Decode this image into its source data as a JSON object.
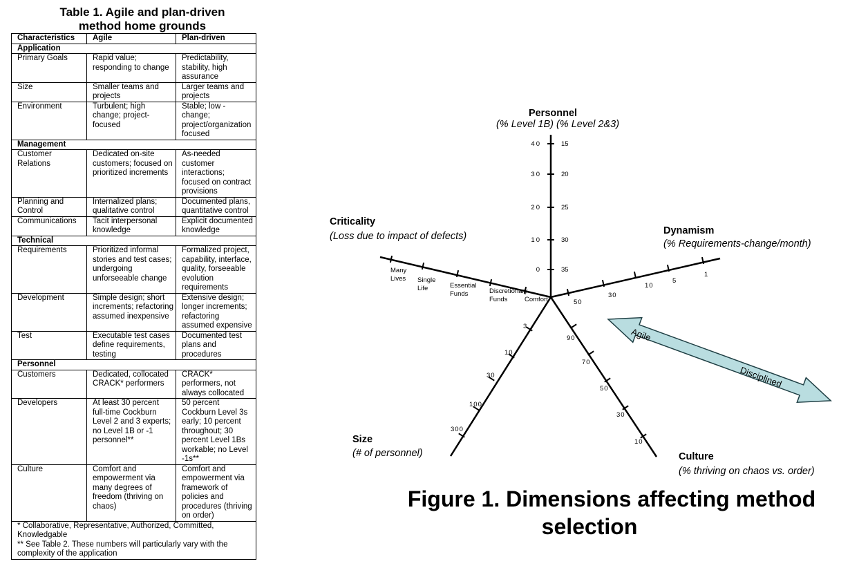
{
  "table": {
    "title": [
      "Table 1. Agile and plan-driven",
      "method home grounds"
    ],
    "header": [
      "Characteristics",
      "Agile",
      "Plan-driven"
    ],
    "sections": [
      {
        "title": "Application",
        "rows": [
          [
            "Primary Goals",
            "Rapid value; responding to change",
            "Predictability, stability, high assurance"
          ],
          [
            "Size",
            "Smaller teams and projects",
            "Larger teams and projects"
          ],
          [
            "Environment",
            "Turbulent; high change; project-focused",
            "Stable; low -change; project/organization focused"
          ]
        ]
      },
      {
        "title": "Management",
        "rows": [
          [
            "Customer Relations",
            "Dedicated on-site customers; focused on prioritized increments",
            "As-needed customer interactions; focused on contract provisions"
          ],
          [
            "Planning and Control",
            "Internalized plans; qualitative control",
            "Documented plans, quantitative control"
          ],
          [
            "Communications",
            "Tacit interpersonal knowledge",
            "Explicit documented knowledge"
          ]
        ]
      },
      {
        "title": "Technical",
        "rows": [
          [
            "Requirements",
            "Prioritized informal stories and test cases; undergoing unforseeable change",
            "Formalized project, capability, interface, quality, forseeable evolution requirements"
          ],
          [
            "Development",
            "Simple design; short increments; refactoring assumed inexpensive",
            "Extensive design; longer increments; refactoring assumed expensive"
          ],
          [
            "Test",
            "Executable test cases define requirements, testing",
            "Documented test plans and procedures"
          ]
        ]
      },
      {
        "title": "Personnel",
        "rows": [
          [
            "Customers",
            "Dedicated, collocated CRACK* performers",
            "CRACK* performers, not always collocated"
          ],
          [
            "Developers",
            "At least 30 percent full-time Cockburn Level 2 and 3 experts; no Level 1B or -1 personnel**",
            "50 percent Cockburn Level 3s early; 10 percent throughout; 30 percent Level 1Bs workable; no Level -1s**"
          ],
          [
            "Culture",
            "Comfort and empowerment via many degrees of freedom (thriving on chaos)",
            "Comfort and empowerment via framework of policies and procedures (thriving on order)"
          ]
        ]
      }
    ],
    "footnotes": [
      "* Collaborative, Representative, Authorized, Committed, Knowledgable",
      "** See Table 2. These numbers will particularly vary with the complexity of the application"
    ]
  },
  "figure": {
    "personnel": {
      "title": "Personnel",
      "subtitle": "(% Level 1B)  (% Level 2&3)",
      "ticks": [
        {
          "left": "40",
          "right": "15"
        },
        {
          "left": "30",
          "right": "20"
        },
        {
          "left": "20",
          "right": "25"
        },
        {
          "left": "10",
          "right": "30"
        },
        {
          "left": "0",
          "right": "35"
        }
      ]
    },
    "dynamism": {
      "title": "Dynamism",
      "subtitle": "(% Requirements-change/month)",
      "ticks": [
        "50",
        "30",
        "10",
        "5",
        "1"
      ]
    },
    "criticality": {
      "title": "Criticality",
      "subtitle": "(Loss due to impact of defects)",
      "ticks": [
        [
          "Comfort"
        ],
        [
          "Discretionary",
          "Funds"
        ],
        [
          "Essential",
          "Funds"
        ],
        [
          "Single",
          "Life"
        ],
        [
          "Many",
          "Lives"
        ]
      ]
    },
    "culture": {
      "title": "Culture",
      "subtitle": "(% thriving on chaos vs. order)",
      "ticks": [
        "90",
        "70",
        "50",
        "30",
        "10"
      ]
    },
    "size": {
      "title": "Size",
      "subtitle": "(# of personnel)",
      "ticks": [
        "3",
        "10",
        "30",
        "100",
        "300"
      ]
    },
    "arrow": {
      "left": "Agile",
      "right": "Disciplined"
    },
    "caption": [
      "Figure 1. Dimensions affecting method",
      "selection"
    ]
  }
}
